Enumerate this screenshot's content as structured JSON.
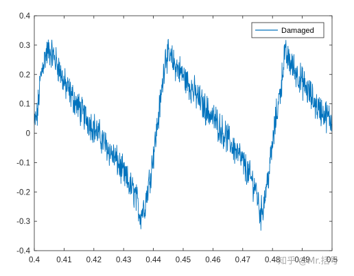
{
  "chart_data": {
    "type": "line",
    "title": "",
    "xlabel": "",
    "ylabel": "",
    "xlim": [
      0.4,
      0.5
    ],
    "ylim": [
      -0.4,
      0.4
    ],
    "x_ticks": [
      0.4,
      0.41,
      0.42,
      0.43,
      0.44,
      0.45,
      0.46,
      0.47,
      0.48,
      0.49,
      0.5
    ],
    "x_tick_labels": [
      "0.4",
      "0.41",
      "0.42",
      "0.43",
      "0.44",
      "0.45",
      "0.46",
      "0.47",
      "0.48",
      "0.49",
      "0.5"
    ],
    "y_ticks": [
      -0.4,
      -0.3,
      -0.2,
      -0.1,
      0,
      0.1,
      0.2,
      0.3,
      0.4
    ],
    "y_tick_labels": [
      "-0.4",
      "-0.3",
      "-0.2",
      "-0.1",
      "0",
      "0.1",
      "0.2",
      "0.3",
      "0.4"
    ],
    "grid": false,
    "legend_position": "top-right",
    "series": [
      {
        "name": "Damaged",
        "color": "#0072BD",
        "description_of_shape": "noisy sawtooth",
        "x": [
          0.4,
          0.401,
          0.402,
          0.403,
          0.404,
          0.405,
          0.406,
          0.408,
          0.41,
          0.413,
          0.416,
          0.42,
          0.424,
          0.428,
          0.431,
          0.434,
          0.4355,
          0.437,
          0.439,
          0.441,
          0.443,
          0.444,
          0.446,
          0.449,
          0.453,
          0.457,
          0.461,
          0.465,
          0.469,
          0.472,
          0.4745,
          0.476,
          0.477,
          0.479,
          0.481,
          0.483,
          0.484,
          0.486,
          0.489,
          0.492,
          0.495,
          0.498,
          0.5
        ],
        "y": [
          0.03,
          0.06,
          0.18,
          0.24,
          0.27,
          0.28,
          0.27,
          0.23,
          0.17,
          0.12,
          0.07,
          0.02,
          -0.04,
          -0.1,
          -0.16,
          -0.21,
          -0.28,
          -0.25,
          -0.14,
          0.0,
          0.16,
          0.27,
          0.25,
          0.21,
          0.15,
          0.09,
          0.04,
          -0.02,
          -0.08,
          -0.14,
          -0.19,
          -0.28,
          -0.24,
          -0.12,
          0.04,
          0.17,
          0.27,
          0.24,
          0.19,
          0.14,
          0.09,
          0.06,
          0.04
        ]
      }
    ]
  },
  "legend": {
    "label": "Damaged"
  },
  "watermark": {
    "text": "知乎 @Mr.括号"
  }
}
